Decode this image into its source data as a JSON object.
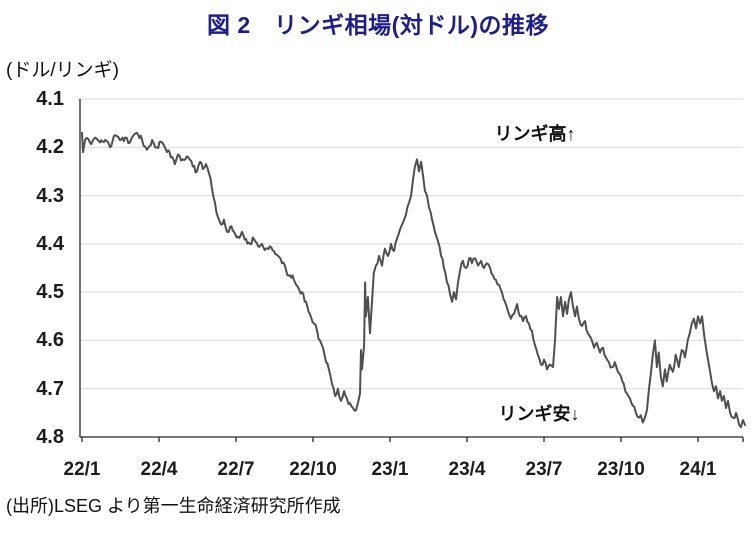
{
  "title": "図 2　リンギ相場(対ドル)の推移",
  "axis_unit": "(ドル/リンギ)",
  "annotations": {
    "high": "リンギ高↑",
    "low": "リンギ安↓"
  },
  "source": "(出所)LSEG より第一生命経済研究所作成",
  "chart_data": {
    "type": "line",
    "title": "図 2　リンギ相場(対ドル)の推移",
    "ylabel": "(ドル/リンギ)",
    "grid": "horizontal",
    "legend": "none",
    "y_axis": {
      "min": 4.1,
      "max": 4.8,
      "step": 0.1,
      "inverted": true,
      "tick_labels": [
        "4.1",
        "4.2",
        "4.3",
        "4.4",
        "4.5",
        "4.6",
        "4.7",
        "4.8"
      ]
    },
    "x_axis": {
      "tick_labels": [
        "22/1",
        "22/4",
        "22/7",
        "22/10",
        "23/1",
        "23/4",
        "23/7",
        "23/10",
        "24/1"
      ],
      "tick_months": [
        0,
        3,
        6,
        9,
        12,
        15,
        18,
        21,
        24
      ],
      "range_months": [
        0,
        26
      ]
    },
    "series": [
      {
        "name": "リンギ相場(ドル/リンギ)",
        "color": "#4f4f4f",
        "points": [
          [
            0,
            4.17
          ],
          [
            0.04,
            4.21
          ],
          [
            0.12,
            4.185
          ],
          [
            0.31,
            4.19
          ],
          [
            0.51,
            4.18
          ],
          [
            0.7,
            4.19
          ],
          [
            0.9,
            4.185
          ],
          [
            1.09,
            4.2
          ],
          [
            1.29,
            4.175
          ],
          [
            1.48,
            4.185
          ],
          [
            1.68,
            4.18
          ],
          [
            1.87,
            4.19
          ],
          [
            2.14,
            4.17
          ],
          [
            2.34,
            4.185
          ],
          [
            2.53,
            4.205
          ],
          [
            2.73,
            4.185
          ],
          [
            2.92,
            4.2
          ],
          [
            3.12,
            4.19
          ],
          [
            3.31,
            4.21
          ],
          [
            3.51,
            4.22
          ],
          [
            3.62,
            4.235
          ],
          [
            3.74,
            4.215
          ],
          [
            3.93,
            4.225
          ],
          [
            4.13,
            4.22
          ],
          [
            4.32,
            4.24
          ],
          [
            4.48,
            4.25
          ],
          [
            4.6,
            4.23
          ],
          [
            4.71,
            4.245
          ],
          [
            4.83,
            4.235
          ],
          [
            4.95,
            4.255
          ],
          [
            5.06,
            4.285
          ],
          [
            5.18,
            4.315
          ],
          [
            5.3,
            4.345
          ],
          [
            5.42,
            4.36
          ],
          [
            5.53,
            4.35
          ],
          [
            5.65,
            4.375
          ],
          [
            5.77,
            4.365
          ],
          [
            5.92,
            4.375
          ],
          [
            6.08,
            4.385
          ],
          [
            6.23,
            4.375
          ],
          [
            6.39,
            4.39
          ],
          [
            6.55,
            4.4
          ],
          [
            6.7,
            4.39
          ],
          [
            6.86,
            4.405
          ],
          [
            7.01,
            4.4
          ],
          [
            7.17,
            4.41
          ],
          [
            7.32,
            4.405
          ],
          [
            7.48,
            4.415
          ],
          [
            7.64,
            4.425
          ],
          [
            7.79,
            4.44
          ],
          [
            7.95,
            4.455
          ],
          [
            8.1,
            4.465
          ],
          [
            8.26,
            4.475
          ],
          [
            8.42,
            4.49
          ],
          [
            8.57,
            4.5
          ],
          [
            8.73,
            4.52
          ],
          [
            8.88,
            4.545
          ],
          [
            9.04,
            4.565
          ],
          [
            9.16,
            4.58
          ],
          [
            9.27,
            4.6
          ],
          [
            9.39,
            4.615
          ],
          [
            9.51,
            4.645
          ],
          [
            9.62,
            4.66
          ],
          [
            9.74,
            4.69
          ],
          [
            9.86,
            4.715
          ],
          [
            9.97,
            4.7
          ],
          [
            10.09,
            4.725
          ],
          [
            10.21,
            4.705
          ],
          [
            10.32,
            4.72
          ],
          [
            10.44,
            4.73
          ],
          [
            10.56,
            4.74
          ],
          [
            10.67,
            4.745
          ],
          [
            10.75,
            4.73
          ],
          [
            10.83,
            4.71
          ],
          [
            10.87,
            4.62
          ],
          [
            10.91,
            4.66
          ],
          [
            10.99,
            4.61
          ],
          [
            11.03,
            4.48
          ],
          [
            11.06,
            4.55
          ],
          [
            11.14,
            4.51
          ],
          [
            11.22,
            4.585
          ],
          [
            11.3,
            4.52
          ],
          [
            11.37,
            4.46
          ],
          [
            11.45,
            4.445
          ],
          [
            11.57,
            4.425
          ],
          [
            11.69,
            4.445
          ],
          [
            11.8,
            4.41
          ],
          [
            11.92,
            4.425
          ],
          [
            12.04,
            4.4
          ],
          [
            12.16,
            4.415
          ],
          [
            12.27,
            4.39
          ],
          [
            12.39,
            4.37
          ],
          [
            12.51,
            4.355
          ],
          [
            12.62,
            4.34
          ],
          [
            12.74,
            4.315
          ],
          [
            12.82,
            4.3
          ],
          [
            12.9,
            4.265
          ],
          [
            12.97,
            4.24
          ],
          [
            13.05,
            4.225
          ],
          [
            13.13,
            4.25
          ],
          [
            13.21,
            4.23
          ],
          [
            13.29,
            4.26
          ],
          [
            13.36,
            4.29
          ],
          [
            13.44,
            4.3
          ],
          [
            13.52,
            4.325
          ],
          [
            13.64,
            4.35
          ],
          [
            13.75,
            4.375
          ],
          [
            13.87,
            4.395
          ],
          [
            13.99,
            4.425
          ],
          [
            14.1,
            4.45
          ],
          [
            14.22,
            4.48
          ],
          [
            14.34,
            4.505
          ],
          [
            14.42,
            4.52
          ],
          [
            14.49,
            4.5
          ],
          [
            14.57,
            4.515
          ],
          [
            14.65,
            4.48
          ],
          [
            14.73,
            4.455
          ],
          [
            14.84,
            4.435
          ],
          [
            14.96,
            4.45
          ],
          [
            15.08,
            4.43
          ],
          [
            15.19,
            4.44
          ],
          [
            15.31,
            4.43
          ],
          [
            15.43,
            4.445
          ],
          [
            15.55,
            4.435
          ],
          [
            15.66,
            4.45
          ],
          [
            15.78,
            4.44
          ],
          [
            15.9,
            4.45
          ],
          [
            16.01,
            4.465
          ],
          [
            16.13,
            4.475
          ],
          [
            16.25,
            4.485
          ],
          [
            16.36,
            4.5
          ],
          [
            16.48,
            4.52
          ],
          [
            16.6,
            4.54
          ],
          [
            16.71,
            4.555
          ],
          [
            16.83,
            4.545
          ],
          [
            16.95,
            4.525
          ],
          [
            17.06,
            4.55
          ],
          [
            17.18,
            4.56
          ],
          [
            17.3,
            4.55
          ],
          [
            17.41,
            4.565
          ],
          [
            17.53,
            4.58
          ],
          [
            17.65,
            4.61
          ],
          [
            17.76,
            4.63
          ],
          [
            17.88,
            4.65
          ],
          [
            18,
            4.64
          ],
          [
            18.12,
            4.66
          ],
          [
            18.23,
            4.65
          ],
          [
            18.35,
            4.655
          ],
          [
            18.43,
            4.6
          ],
          [
            18.51,
            4.51
          ],
          [
            18.58,
            4.535
          ],
          [
            18.66,
            4.51
          ],
          [
            18.74,
            4.55
          ],
          [
            18.82,
            4.52
          ],
          [
            18.9,
            4.545
          ],
          [
            18.97,
            4.515
          ],
          [
            19.05,
            4.5
          ],
          [
            19.13,
            4.53
          ],
          [
            19.21,
            4.55
          ],
          [
            19.28,
            4.53
          ],
          [
            19.36,
            4.555
          ],
          [
            19.48,
            4.57
          ],
          [
            19.6,
            4.56
          ],
          [
            19.71,
            4.585
          ],
          [
            19.83,
            4.595
          ],
          [
            19.95,
            4.615
          ],
          [
            20.06,
            4.605
          ],
          [
            20.18,
            4.625
          ],
          [
            20.3,
            4.615
          ],
          [
            20.41,
            4.635
          ],
          [
            20.53,
            4.645
          ],
          [
            20.65,
            4.655
          ],
          [
            20.76,
            4.645
          ],
          [
            20.88,
            4.665
          ],
          [
            21,
            4.675
          ],
          [
            21.11,
            4.69
          ],
          [
            21.23,
            4.71
          ],
          [
            21.35,
            4.72
          ],
          [
            21.46,
            4.735
          ],
          [
            21.58,
            4.75
          ],
          [
            21.7,
            4.76
          ],
          [
            21.77,
            4.755
          ],
          [
            21.85,
            4.77
          ],
          [
            21.93,
            4.76
          ],
          [
            22.01,
            4.745
          ],
          [
            22.09,
            4.7
          ],
          [
            22.16,
            4.67
          ],
          [
            22.24,
            4.63
          ],
          [
            22.32,
            4.6
          ],
          [
            22.4,
            4.655
          ],
          [
            22.47,
            4.625
          ],
          [
            22.55,
            4.675
          ],
          [
            22.63,
            4.695
          ],
          [
            22.71,
            4.66
          ],
          [
            22.78,
            4.685
          ],
          [
            22.9,
            4.65
          ],
          [
            23.02,
            4.665
          ],
          [
            23.13,
            4.63
          ],
          [
            23.25,
            4.655
          ],
          [
            23.37,
            4.62
          ],
          [
            23.49,
            4.635
          ],
          [
            23.6,
            4.6
          ],
          [
            23.68,
            4.585
          ],
          [
            23.76,
            4.565
          ],
          [
            23.84,
            4.555
          ],
          [
            23.92,
            4.575
          ],
          [
            24,
            4.55
          ],
          [
            24.08,
            4.565
          ],
          [
            24.16,
            4.55
          ],
          [
            24.23,
            4.585
          ],
          [
            24.31,
            4.615
          ],
          [
            24.39,
            4.64
          ],
          [
            24.47,
            4.665
          ],
          [
            24.55,
            4.69
          ],
          [
            24.62,
            4.705
          ],
          [
            24.7,
            4.695
          ],
          [
            24.78,
            4.72
          ],
          [
            24.86,
            4.705
          ],
          [
            24.93,
            4.725
          ],
          [
            25.01,
            4.715
          ],
          [
            25.09,
            4.74
          ],
          [
            25.17,
            4.725
          ],
          [
            25.25,
            4.75
          ],
          [
            25.36,
            4.76
          ],
          [
            25.48,
            4.75
          ],
          [
            25.6,
            4.775
          ],
          [
            25.67,
            4.78
          ],
          [
            25.75,
            4.765
          ],
          [
            25.83,
            4.775
          ]
        ]
      }
    ],
    "annotations": [
      "リンギ高↑",
      "リンギ安↓"
    ],
    "source": "(出所)LSEG より第一生命経済研究所作成",
    "colors": {
      "title": "#1e1d90",
      "line": "#4f4f4f",
      "gridline": "#d9d9d9",
      "axis": "#262626",
      "text": "#111111"
    }
  }
}
